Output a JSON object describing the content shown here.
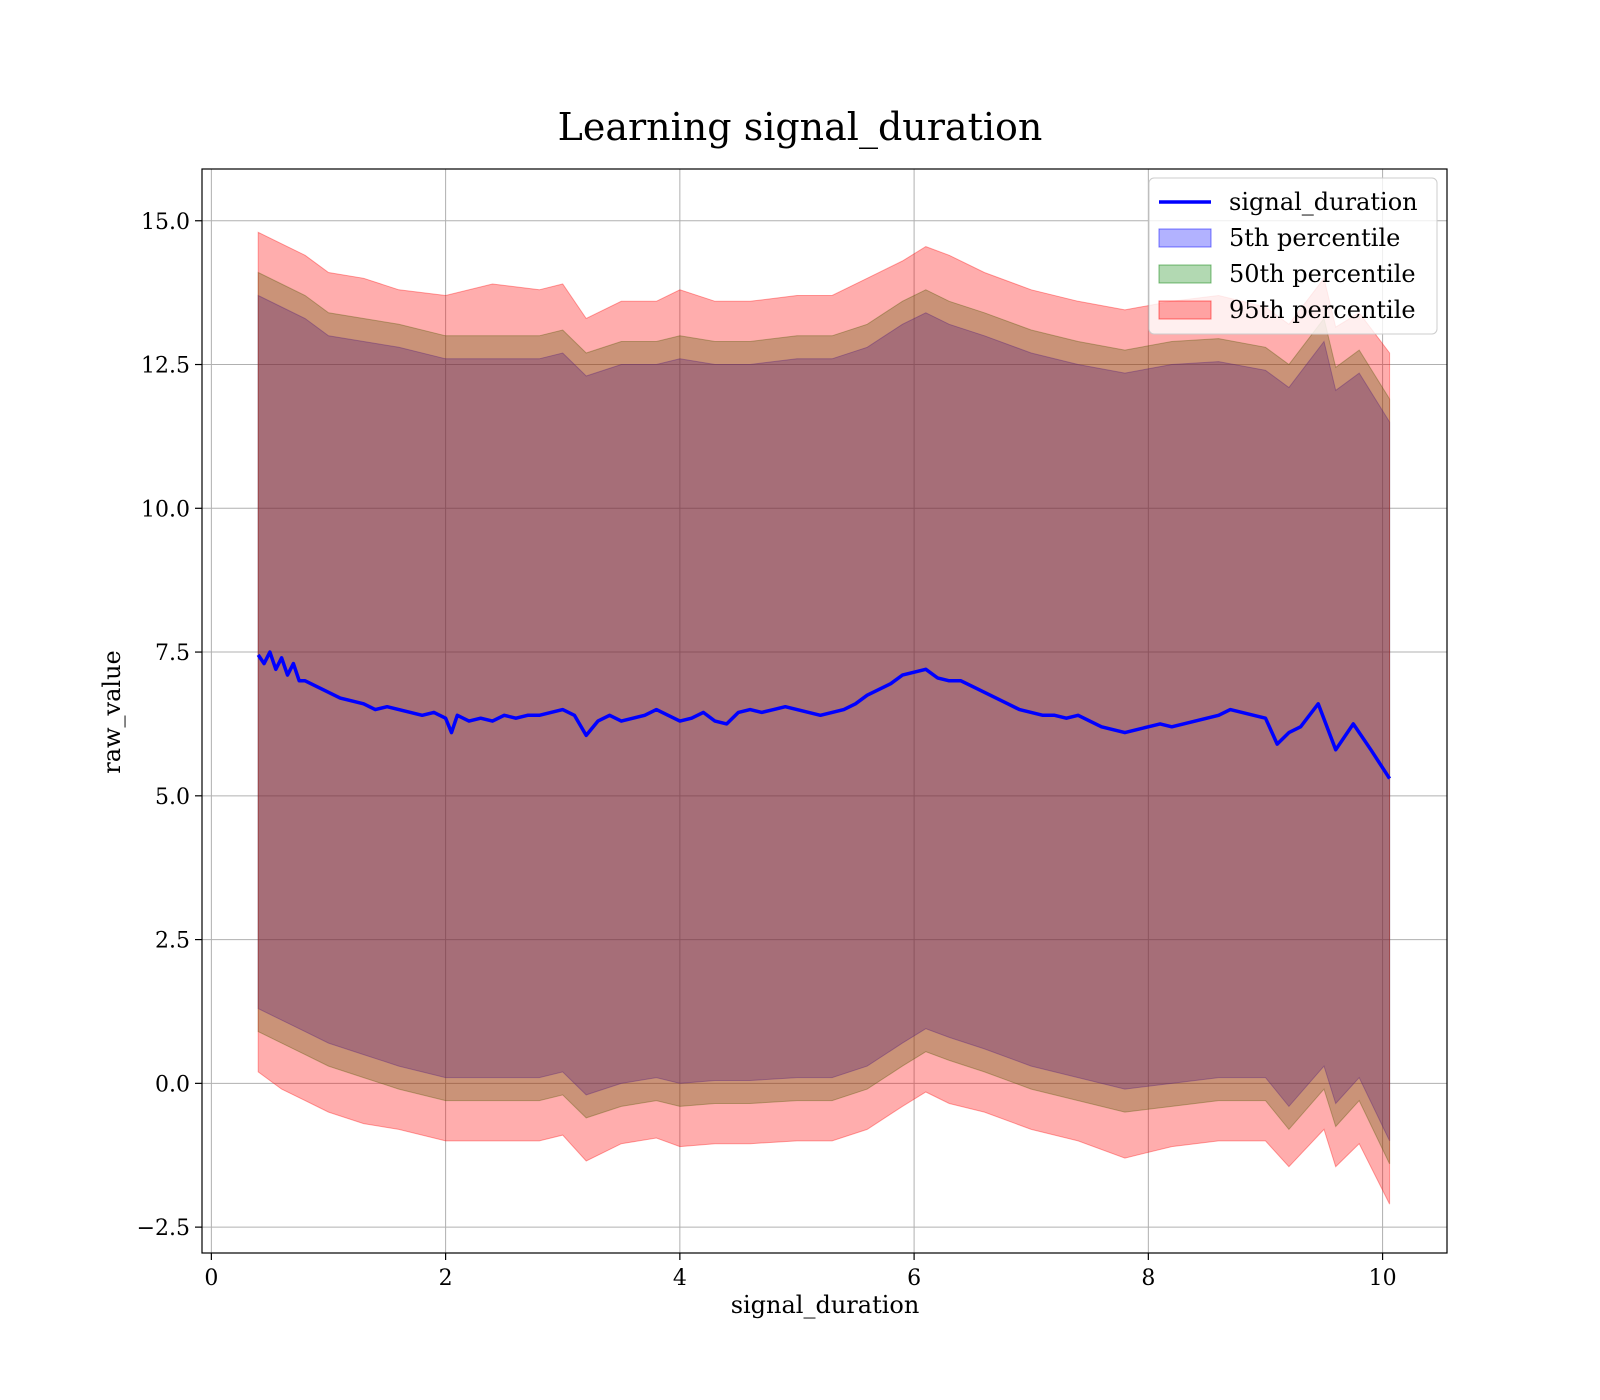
{
  "chart_data": {
    "type": "area",
    "title": "Learning signal_duration",
    "xlabel": "signal_duration",
    "ylabel": "raw_value",
    "xlim": [
      -0.08,
      10.55
    ],
    "ylim": [
      -2.95,
      15.9
    ],
    "xticks": [
      0,
      2,
      4,
      6,
      8,
      10
    ],
    "xtick_labels": [
      "0",
      "2",
      "4",
      "6",
      "8",
      "10"
    ],
    "yticks": [
      -2.5,
      0,
      2.5,
      5,
      7.5,
      10,
      12.5,
      15
    ],
    "ytick_labels": [
      "−2.5",
      "0.0",
      "2.5",
      "5.0",
      "7.5",
      "10.0",
      "12.5",
      "15.0"
    ],
    "grid": true,
    "legend_position": "upper-right",
    "line": {
      "name": "signal_duration",
      "color": "#0000ff",
      "x": [
        0.4,
        0.45,
        0.5,
        0.55,
        0.6,
        0.65,
        0.7,
        0.75,
        0.8,
        0.9,
        1.0,
        1.1,
        1.2,
        1.3,
        1.4,
        1.5,
        1.6,
        1.7,
        1.8,
        1.9,
        2.0,
        2.05,
        2.1,
        2.2,
        2.3,
        2.4,
        2.5,
        2.6,
        2.7,
        2.8,
        2.9,
        3.0,
        3.1,
        3.2,
        3.3,
        3.4,
        3.5,
        3.6,
        3.7,
        3.8,
        3.9,
        4.0,
        4.1,
        4.2,
        4.3,
        4.4,
        4.5,
        4.6,
        4.7,
        4.8,
        4.9,
        5.0,
        5.1,
        5.2,
        5.3,
        5.4,
        5.5,
        5.6,
        5.7,
        5.8,
        5.9,
        6.0,
        6.1,
        6.2,
        6.3,
        6.4,
        6.5,
        6.6,
        6.7,
        6.8,
        6.9,
        7.0,
        7.1,
        7.2,
        7.3,
        7.4,
        7.5,
        7.6,
        7.7,
        7.8,
        7.9,
        8.0,
        8.1,
        8.2,
        8.3,
        8.4,
        8.5,
        8.6,
        8.7,
        8.8,
        8.9,
        9.0,
        9.1,
        9.2,
        9.3,
        9.45,
        9.6,
        9.75,
        9.9,
        10.06
      ],
      "y": [
        7.45,
        7.3,
        7.5,
        7.2,
        7.4,
        7.1,
        7.3,
        7.0,
        7.0,
        6.9,
        6.8,
        6.7,
        6.65,
        6.6,
        6.5,
        6.55,
        6.5,
        6.45,
        6.4,
        6.45,
        6.35,
        6.1,
        6.4,
        6.3,
        6.35,
        6.3,
        6.4,
        6.35,
        6.4,
        6.4,
        6.45,
        6.5,
        6.4,
        6.05,
        6.3,
        6.4,
        6.3,
        6.35,
        6.4,
        6.5,
        6.4,
        6.3,
        6.35,
        6.45,
        6.3,
        6.25,
        6.45,
        6.5,
        6.45,
        6.5,
        6.55,
        6.5,
        6.45,
        6.4,
        6.45,
        6.5,
        6.6,
        6.75,
        6.85,
        6.95,
        7.1,
        7.15,
        7.2,
        7.05,
        7.0,
        7.0,
        6.9,
        6.8,
        6.7,
        6.6,
        6.5,
        6.45,
        6.4,
        6.4,
        6.35,
        6.4,
        6.3,
        6.2,
        6.15,
        6.1,
        6.15,
        6.2,
        6.25,
        6.2,
        6.25,
        6.3,
        6.35,
        6.4,
        6.5,
        6.45,
        6.4,
        6.35,
        5.9,
        6.1,
        6.2,
        6.6,
        5.8,
        6.25,
        5.8,
        5.3
      ]
    },
    "bands": [
      {
        "name": "5th percentile",
        "color": "#0000ff",
        "alpha": 0.3,
        "x": [
          0.4,
          0.6,
          0.8,
          1.0,
          1.3,
          1.6,
          2.0,
          2.4,
          2.8,
          3.0,
          3.2,
          3.5,
          3.8,
          4.0,
          4.3,
          4.6,
          5.0,
          5.3,
          5.6,
          5.9,
          6.1,
          6.3,
          6.6,
          7.0,
          7.4,
          7.8,
          8.2,
          8.6,
          9.0,
          9.2,
          9.5,
          9.6,
          9.8,
          10.06
        ],
        "upper": [
          13.7,
          13.5,
          13.3,
          13.0,
          12.9,
          12.8,
          12.6,
          12.6,
          12.6,
          12.7,
          12.3,
          12.5,
          12.5,
          12.6,
          12.5,
          12.5,
          12.6,
          12.6,
          12.8,
          13.2,
          13.4,
          13.2,
          13.0,
          12.7,
          12.5,
          12.35,
          12.5,
          12.55,
          12.4,
          12.1,
          12.9,
          12.05,
          12.35,
          11.5
        ],
        "lower": [
          1.3,
          1.1,
          0.9,
          0.7,
          0.5,
          0.3,
          0.1,
          0.1,
          0.1,
          0.2,
          -0.2,
          0.0,
          0.1,
          0.0,
          0.05,
          0.05,
          0.1,
          0.1,
          0.3,
          0.7,
          0.95,
          0.8,
          0.6,
          0.3,
          0.1,
          -0.1,
          0.0,
          0.1,
          0.1,
          -0.4,
          0.3,
          -0.35,
          0.1,
          -1.0
        ]
      },
      {
        "name": "50th percentile",
        "color": "#008000",
        "alpha": 0.3,
        "x": [
          0.4,
          0.6,
          0.8,
          1.0,
          1.3,
          1.6,
          2.0,
          2.4,
          2.8,
          3.0,
          3.2,
          3.5,
          3.8,
          4.0,
          4.3,
          4.6,
          5.0,
          5.3,
          5.6,
          5.9,
          6.1,
          6.3,
          6.6,
          7.0,
          7.4,
          7.8,
          8.2,
          8.6,
          9.0,
          9.2,
          9.5,
          9.6,
          9.8,
          10.06
        ],
        "upper": [
          14.1,
          13.9,
          13.7,
          13.4,
          13.3,
          13.2,
          13.0,
          13.0,
          13.0,
          13.1,
          12.7,
          12.9,
          12.9,
          13.0,
          12.9,
          12.9,
          13.0,
          13.0,
          13.2,
          13.6,
          13.8,
          13.6,
          13.4,
          13.1,
          12.9,
          12.75,
          12.9,
          12.95,
          12.8,
          12.5,
          13.3,
          12.45,
          12.75,
          11.9
        ],
        "lower": [
          0.9,
          0.7,
          0.5,
          0.3,
          0.1,
          -0.1,
          -0.3,
          -0.3,
          -0.3,
          -0.2,
          -0.6,
          -0.4,
          -0.3,
          -0.4,
          -0.35,
          -0.35,
          -0.3,
          -0.3,
          -0.1,
          0.3,
          0.55,
          0.4,
          0.2,
          -0.1,
          -0.3,
          -0.5,
          -0.4,
          -0.3,
          -0.3,
          -0.8,
          -0.1,
          -0.75,
          -0.3,
          -1.4
        ]
      },
      {
        "name": "95th percentile",
        "color": "#ff0000",
        "alpha": 0.32,
        "x": [
          0.4,
          0.6,
          0.8,
          1.0,
          1.3,
          1.6,
          2.0,
          2.4,
          2.8,
          3.0,
          3.2,
          3.5,
          3.8,
          4.0,
          4.3,
          4.6,
          5.0,
          5.3,
          5.6,
          5.9,
          6.1,
          6.3,
          6.6,
          7.0,
          7.4,
          7.8,
          8.2,
          8.6,
          9.0,
          9.2,
          9.5,
          9.6,
          9.8,
          10.06
        ],
        "upper": [
          14.8,
          14.6,
          14.4,
          14.1,
          14.0,
          13.8,
          13.7,
          13.9,
          13.8,
          13.9,
          13.3,
          13.6,
          13.6,
          13.8,
          13.6,
          13.6,
          13.7,
          13.7,
          14.0,
          14.3,
          14.55,
          14.4,
          14.1,
          13.8,
          13.6,
          13.45,
          13.6,
          13.7,
          13.5,
          13.2,
          14.0,
          13.15,
          13.4,
          12.7
        ],
        "lower": [
          0.2,
          -0.1,
          -0.3,
          -0.5,
          -0.7,
          -0.8,
          -1.0,
          -1.0,
          -1.0,
          -0.9,
          -1.35,
          -1.05,
          -0.95,
          -1.1,
          -1.05,
          -1.05,
          -1.0,
          -1.0,
          -0.8,
          -0.4,
          -0.15,
          -0.35,
          -0.5,
          -0.8,
          -1.0,
          -1.3,
          -1.1,
          -1.0,
          -1.0,
          -1.45,
          -0.8,
          -1.45,
          -1.05,
          -2.1
        ]
      }
    ],
    "legend": [
      "signal_duration",
      "5th percentile",
      "50th percentile",
      "95th percentile"
    ]
  }
}
